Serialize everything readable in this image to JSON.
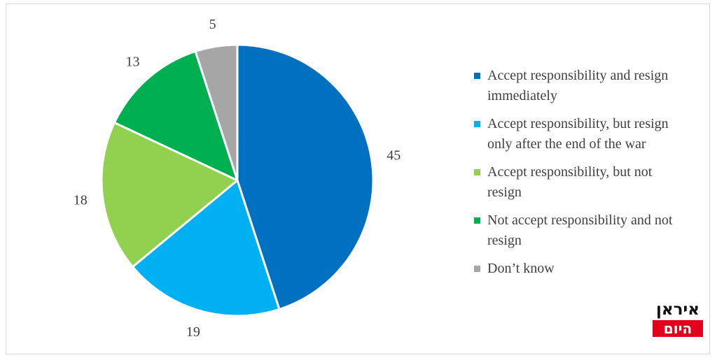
{
  "chart_data": {
    "type": "pie",
    "title": "",
    "legend_position": "right",
    "slices": [
      {
        "name": "Accept responsibility and resign immediately",
        "value": 45,
        "label": "45",
        "color": "#0070c0"
      },
      {
        "name": "Accept responsibility, but resign only after the end of the war",
        "value": 19,
        "label": "19",
        "color": "#00b0f0"
      },
      {
        "name": "Accept responsibility, but not resign",
        "value": 18,
        "label": "18",
        "color": "#92d050"
      },
      {
        "name": "Not accept responsibility and not resign",
        "value": 13,
        "label": "13",
        "color": "#00b050"
      },
      {
        "name": "Don’t know",
        "value": 5,
        "label": "5",
        "color": "#a6a6a6"
      }
    ]
  },
  "legend": {
    "items": [
      {
        "line1": "Accept responsibility and resign",
        "line2": "immediately"
      },
      {
        "line1": "Accept responsibility, but resign",
        "line2": "only after the end of the war"
      },
      {
        "line1": "Accept responsibility, but not",
        "line2": "resign"
      },
      {
        "line1": "Not accept responsibility and not",
        "line2": "resign"
      },
      {
        "line1": "Don’t know",
        "line2": ""
      }
    ]
  },
  "logo": {
    "top": "איראן",
    "bottom": "היום"
  }
}
